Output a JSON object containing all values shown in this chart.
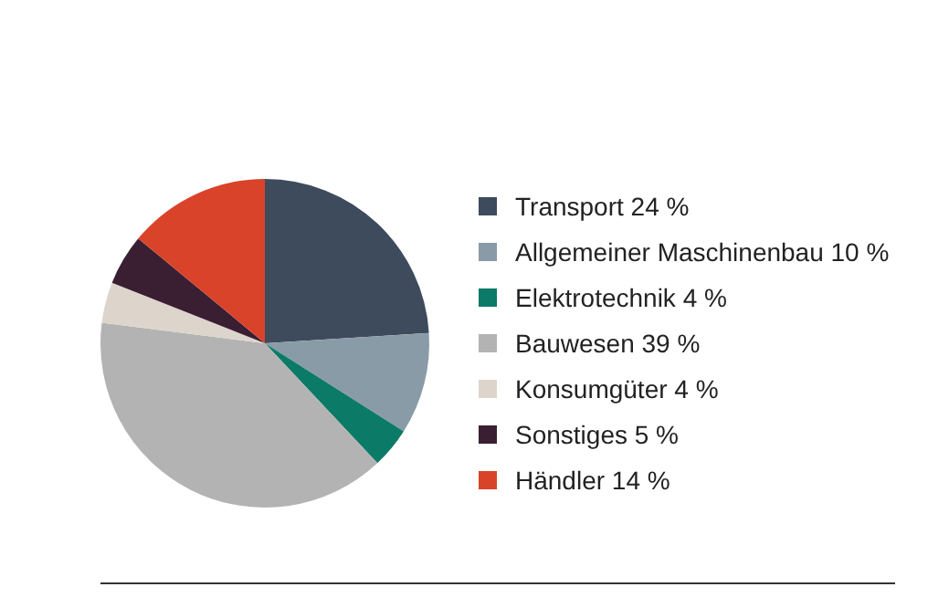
{
  "chart_data": {
    "type": "pie",
    "categories": [
      "Transport",
      "Allgemeiner Maschinenbau",
      "Elektrotechnik",
      "Bauwesen",
      "Konsumgüter",
      "Sonstiges",
      "Händler"
    ],
    "values": [
      24,
      10,
      4,
      39,
      4,
      5,
      14
    ],
    "value_labels": [
      "24 %",
      "10 %",
      "4 %",
      "39 %",
      "4 %",
      "5 %",
      "14 %"
    ],
    "colors": [
      "#3d4b5c",
      "#8a9ba8",
      "#0b7a66",
      "#b3b3b3",
      "#ddd5cc",
      "#3a1f33",
      "#d9432a"
    ],
    "legend": "right"
  }
}
